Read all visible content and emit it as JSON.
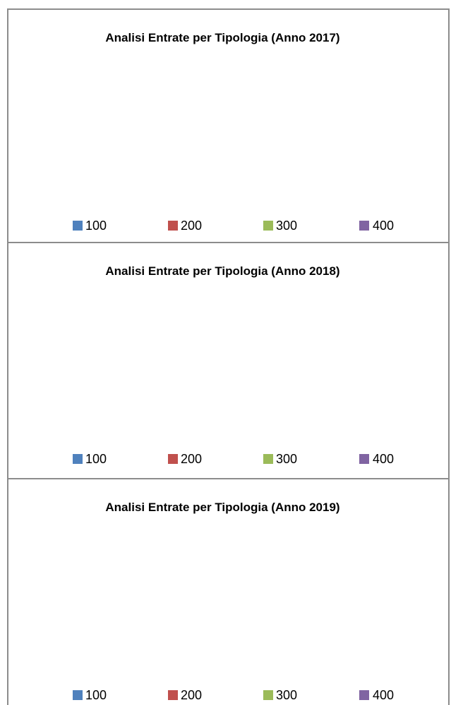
{
  "chart_data": [
    {
      "type": "pie",
      "title": "Analisi Entrate per Tipologia (Anno 2017)",
      "categories": [
        "100",
        "200",
        "300",
        "400"
      ],
      "colors": [
        "#4f81bd",
        "#c0504d",
        "#9bbb59",
        "#8064a2"
      ]
    },
    {
      "type": "pie",
      "title": "Analisi Entrate per Tipologia (Anno 2018)",
      "categories": [
        "100",
        "200",
        "300",
        "400"
      ],
      "colors": [
        "#4f81bd",
        "#c0504d",
        "#9bbb59",
        "#8064a2"
      ]
    },
    {
      "type": "pie",
      "title": "Analisi Entrate per Tipologia (Anno 2019)",
      "categories": [
        "100",
        "200",
        "300",
        "400"
      ],
      "colors": [
        "#4f81bd",
        "#c0504d",
        "#9bbb59",
        "#8064a2"
      ]
    }
  ]
}
